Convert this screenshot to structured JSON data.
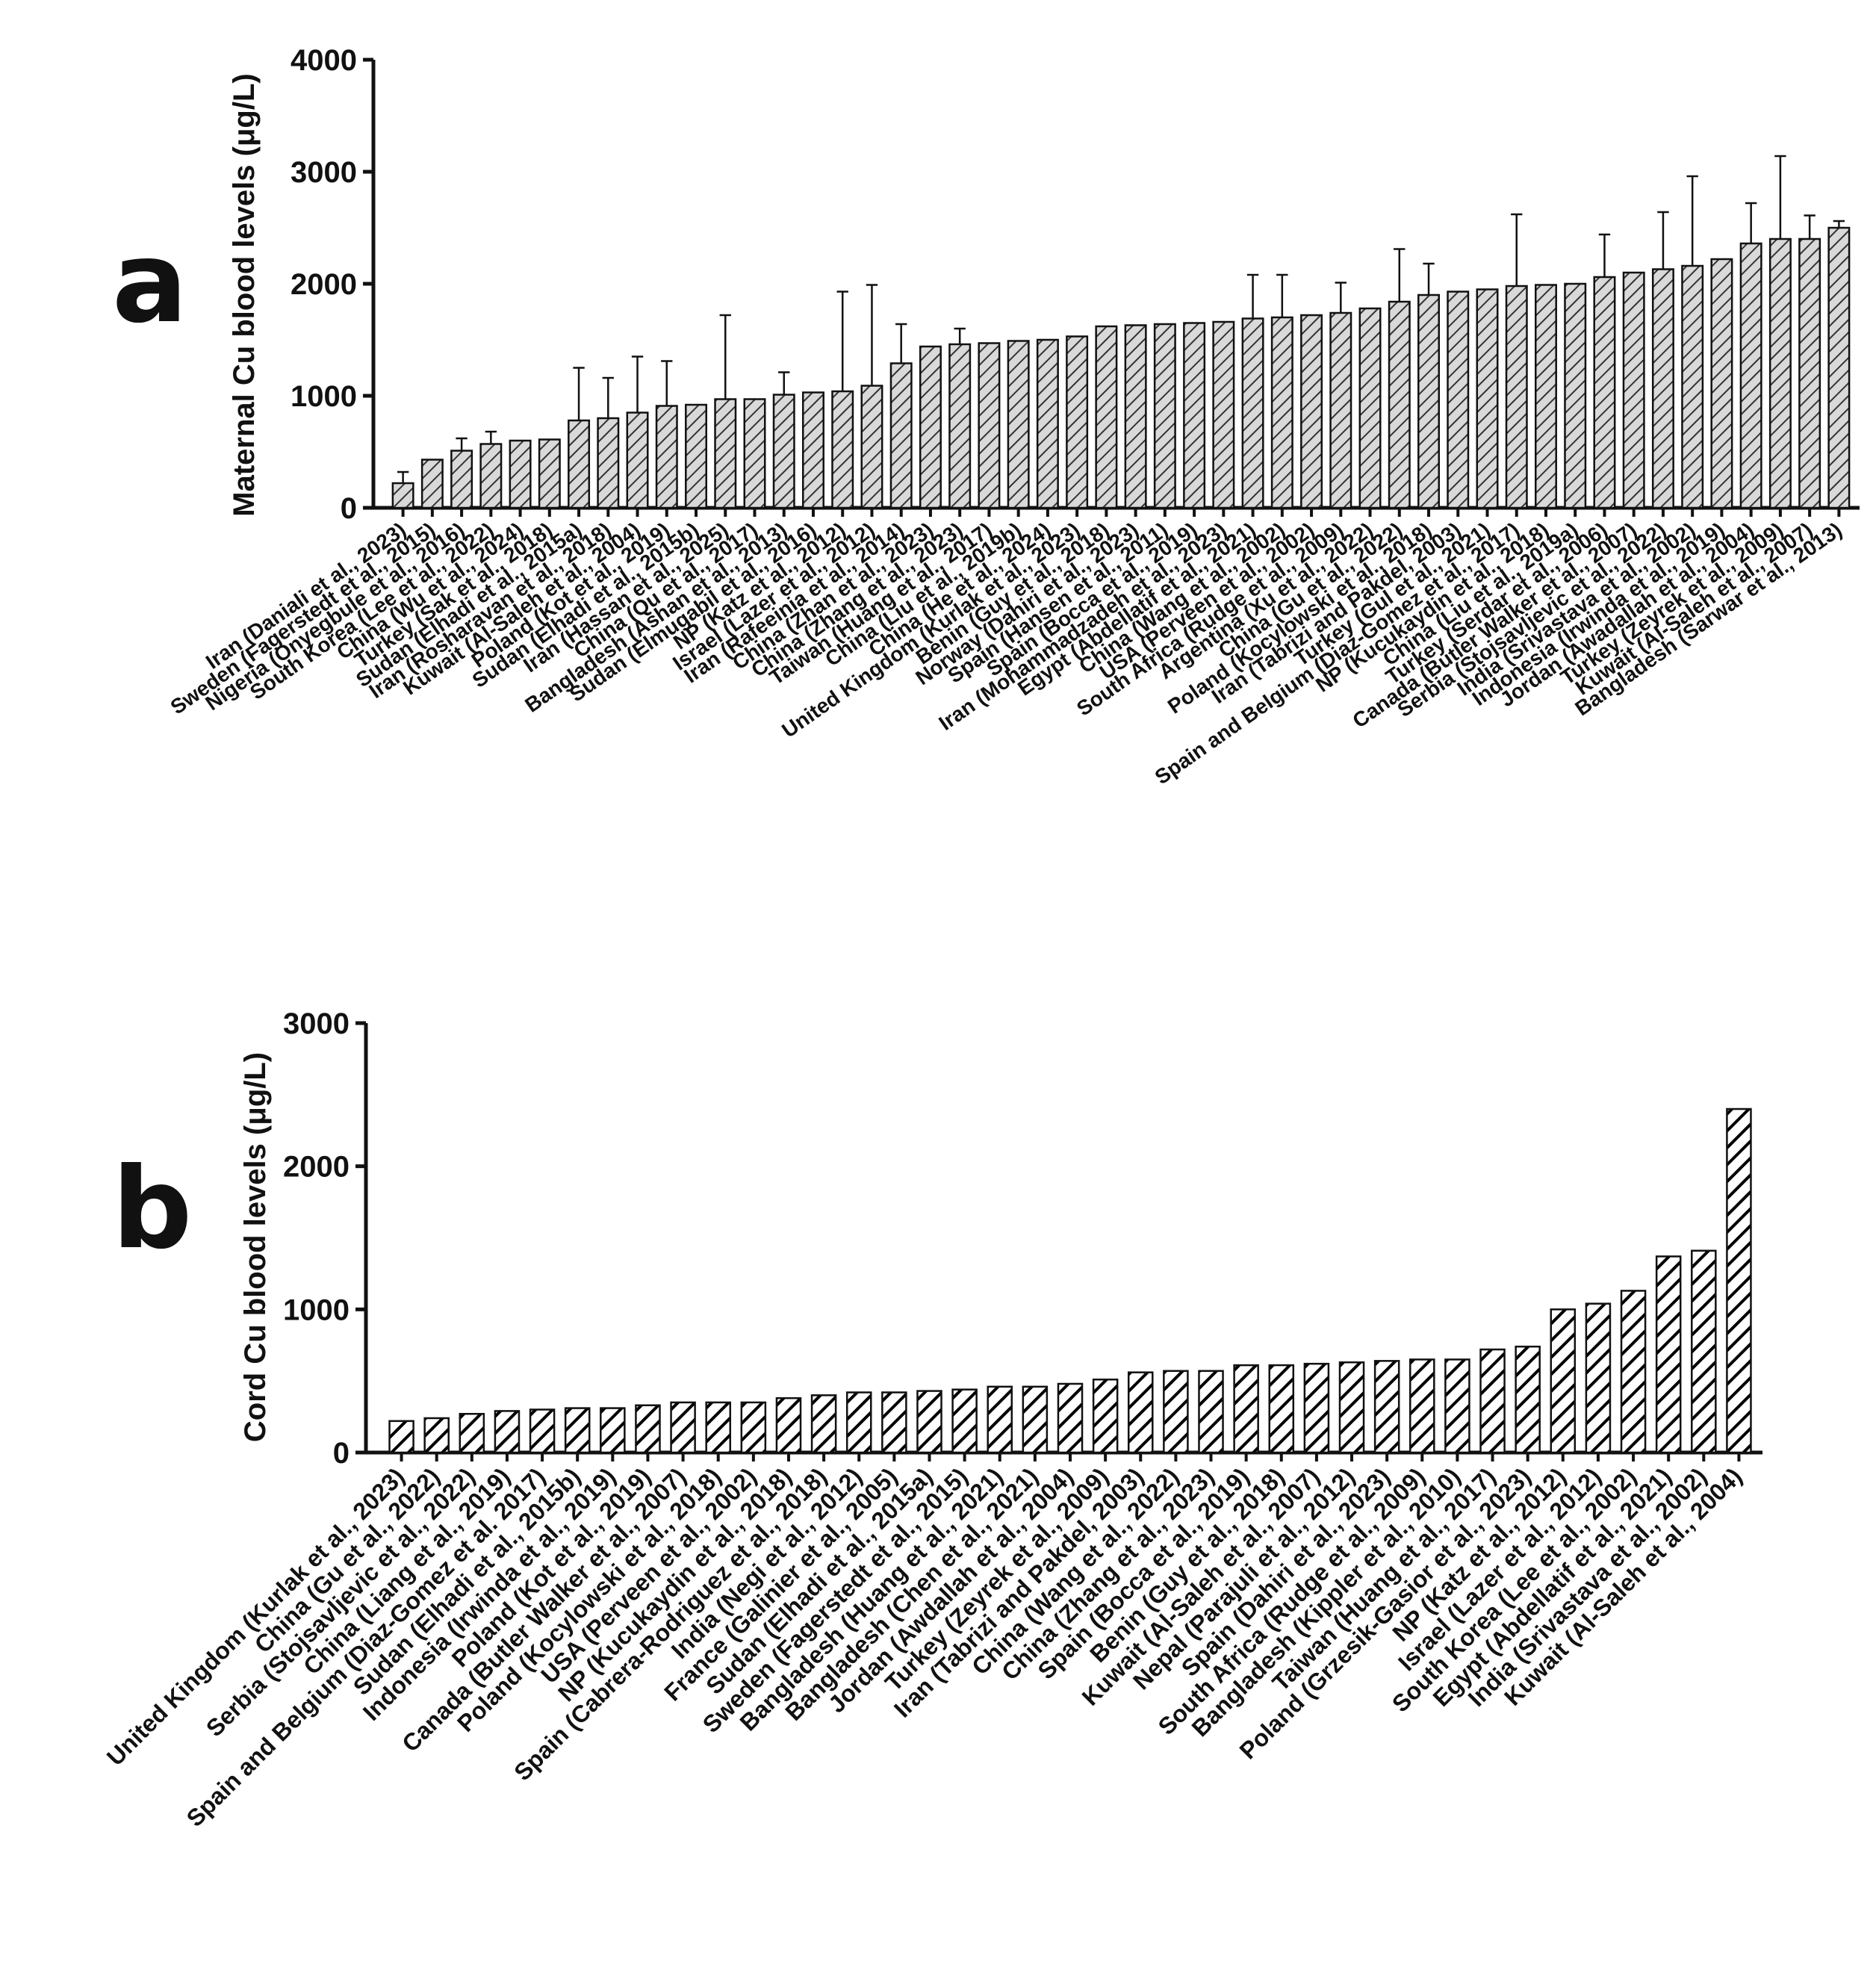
{
  "chart_data": [
    {
      "type": "bar",
      "panel_label": "a",
      "ylabel": "Maternal Cu blood levels (μg/L)",
      "ylim": [
        0,
        4000
      ],
      "yticks": [
        0,
        1000,
        2000,
        3000,
        4000
      ],
      "error_bars": true,
      "bar_pattern": "diagonal-hatch-grey",
      "categories": [
        "Iran (Daniali et al., 2023)",
        "Sweden (Fagerstedt et al., 2015)",
        "Nigeria (Onyegbule et al., 2016)",
        "South Korea (Lee et al., 2022)",
        "China (Wu et al., 2024)",
        "Turkey (Sak et al., 2018)",
        "Sudan (Elhadi et al., 2015a)",
        "Iran (Rosharavan et al., 2018)",
        "Kuwait (Al-Saleh et al., 2004)",
        "Poland (Kot et al., 2019)",
        "Sudan (Elhadi et al., 2015b)",
        "Iran (Hassan et al., 2025)",
        "China (Qu et al., 2017)",
        "Bangladesh (Ashan et al., 2013)",
        "Sudan (Elmugabil et al., 2016)",
        "NP (Katz et al., 2012)",
        "Israel (Lazer et al., 2012)",
        "Iran (Rafeeinia et al., 2014)",
        "China (Zhan et al., 2023)",
        "China (Zhang et al., 2023)",
        "Taiwan (Huang et al., 2017)",
        "China (Liu et al., 2019b)",
        "China (He et al., 2024)",
        "United Kingdom (Kurlak et al., 2023)",
        "Benin (Guy et al., 2018)",
        "Norway (Dahiri et al., 2023)",
        "Spain (Hansen et al., 2011)",
        "Spain (Bocca et al., 2019)",
        "Iran (Mohammadzadeh et al., 2023)",
        "Egypt (Abdellatif et al., 2021)",
        "China (Wang et al., 2002)",
        "USA (Perveen et al., 2002)",
        "South Africa (Rudge et al., 2009)",
        "Argentina (Xu et al., 2022)",
        "China (Gu et al., 2022)",
        "Poland (Kocylowski et al., 2018)",
        "Iran (Tabrizi and Pakdel, 2003)",
        "Turkey (Gul et al., 2021)",
        "Spain and Belgium (Diaz-Gomez et al., 2017)",
        "NP (Kucukaydin et al., 2018)",
        "China (Liu et al., 2019a)",
        "Turkey (Serdar et al., 2006)",
        "Canada (Butler Walker et al., 2007)",
        "Serbia (Stojsavljevic et al., 2022)",
        "India (Srivastava et al., 2002)",
        "Indonesia (Irwinda et al., 2019)",
        "Jordan (Awadallah et al., 2004)",
        "Turkey (Zeyrek et al., 2009)",
        "Kuwait (Al-Saleh et al., 2007)",
        "Bangladesh (Sarwar et al., 2013)"
      ],
      "values": [
        220,
        430,
        510,
        570,
        600,
        610,
        780,
        800,
        850,
        910,
        920,
        970,
        970,
        1010,
        1030,
        1040,
        1090,
        1290,
        1440,
        1460,
        1470,
        1490,
        1500,
        1530,
        1620,
        1630,
        1640,
        1650,
        1660,
        1690,
        1700,
        1720,
        1740,
        1780,
        1840,
        1900,
        1930,
        1950,
        1980,
        1990,
        2000,
        2060,
        2100,
        2130,
        2160,
        2220,
        2360,
        2400,
        2400,
        2500
      ],
      "errors": [
        100,
        0,
        110,
        110,
        0,
        0,
        470,
        360,
        500,
        400,
        0,
        750,
        0,
        200,
        0,
        890,
        900,
        350,
        0,
        140,
        0,
        0,
        0,
        0,
        0,
        0,
        0,
        0,
        0,
        390,
        380,
        0,
        270,
        0,
        470,
        280,
        0,
        0,
        640,
        0,
        0,
        380,
        0,
        510,
        800,
        0,
        360,
        740,
        210,
        60
      ]
    },
    {
      "type": "bar",
      "panel_label": "b",
      "ylabel": "Cord Cu blood levels (μg/L)",
      "ylim": [
        0,
        3000
      ],
      "yticks": [
        0,
        1000,
        2000,
        3000
      ],
      "error_bars": true,
      "bar_pattern": "diagonal-hatch-black",
      "categories": [
        "United Kingdom (Kurlak et al., 2023)",
        "China (Gu et al., 2022)",
        "Serbia (Stojsavljevic et al., 2022)",
        "China (Liang et al., 2019)",
        "Spain and Belgium (Diaz-Gomez et al. 2017)",
        "Sudan (Elhadi et al., 2015b)",
        "Indonesia (Irwinda et al., 2019)",
        "Poland (Kot et al., 2019)",
        "Canada (Butler Walker et al., 2007)",
        "Poland (Kocylowski et al., 2018)",
        "USA (Perveen et al., 2002)",
        "NP (Kucukaydin et al., 2018)",
        "Spain (Cabrera-Rodriguez et al., 2018)",
        "India (Negi et al., 2012)",
        "France (Galinier et al., 2005)",
        "Sudan (Elhadi et al., 2015a)",
        "Sweden (Fagerstedt et al., 2015)",
        "Bangladesh (Huang et al., 2021)",
        "Bangladesh (Chen et al., 2021)",
        "Jordan (Awdallah et al., 2004)",
        "Turkey (Zeyrek et al., 2009)",
        "Iran (Tabrizi and Pakdel, 2003)",
        "China (Wang et al., 2022)",
        "China (Zhang et al., 2023)",
        "Spain (Bocca et al., 2019)",
        "Benin (Guy et al., 2018)",
        "Kuwait (Al-Saleh et al., 2007)",
        "Nepal (Parajuli et al., 2012)",
        "Spain (Dahiri et al., 2023)",
        "South Africa (Rudge et al., 2009)",
        "Bangladesh (Kippler et al., 2010)",
        "Taiwan (Huang et al., 2017)",
        "Poland (Grzesik-Gasior et al., 2023)",
        "NP (Katz et al., 2012)",
        "Israel (Lazer et al., 2012)",
        "South Korea (Lee et al., 2002)",
        "Egypt (Abdellatif et al., 2021)",
        "India (Srivastava et al., 2002)",
        "Kuwait (Al-Saleh et al., 2004)"
      ],
      "values": [
        220,
        240,
        270,
        290,
        300,
        310,
        310,
        330,
        350,
        350,
        350,
        380,
        400,
        420,
        420,
        430,
        440,
        460,
        460,
        480,
        510,
        560,
        570,
        570,
        610,
        610,
        620,
        630,
        640,
        650,
        650,
        720,
        740,
        1000,
        1040,
        1130,
        1370,
        1410,
        2400
      ]
    }
  ]
}
